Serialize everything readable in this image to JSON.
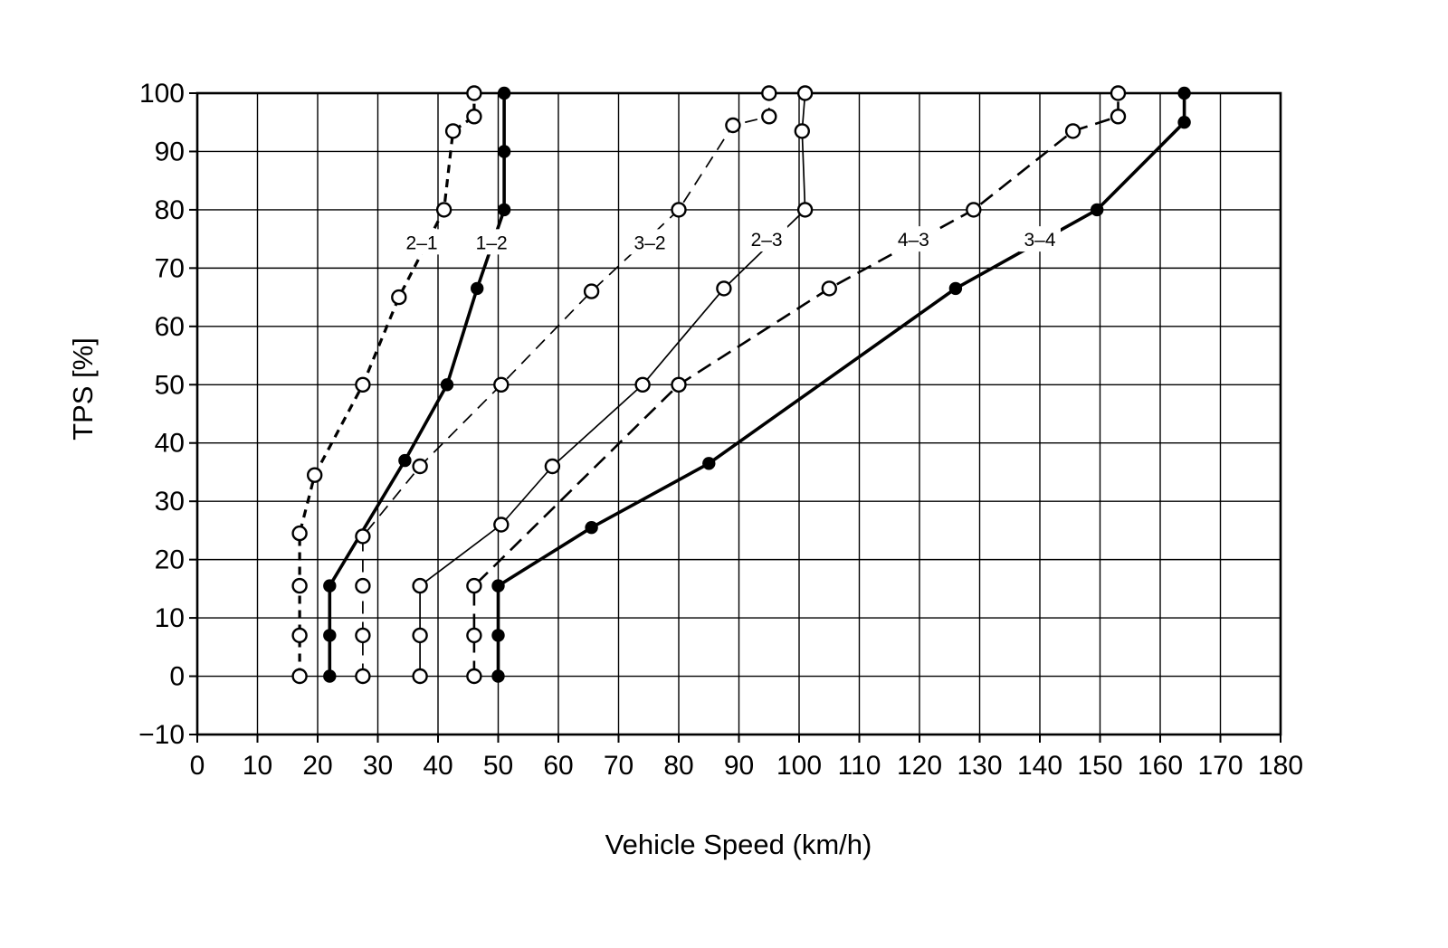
{
  "page": {
    "background": "#ffffff",
    "ink": "#000000"
  },
  "chart_data": {
    "type": "line",
    "title": "",
    "xlabel": "Vehicle Speed (km/h)",
    "ylabel": "TPS [%]",
    "xlim": [
      0,
      180
    ],
    "ylim": [
      -10,
      100
    ],
    "xtick_step": 10,
    "ytick_step": 10,
    "grid": true,
    "legend_position": "none",
    "axis_color": "#000000",
    "series": [
      {
        "name": "2-1",
        "label": "2–1",
        "label_at": [
          37.3,
          74.5
        ],
        "line_style": "dashed",
        "dash": "9 7",
        "line_width": 3.2,
        "marker": "open",
        "points": [
          [
            17,
            0
          ],
          [
            17,
            7
          ],
          [
            17,
            15.5
          ],
          [
            17,
            24.5
          ],
          [
            19.5,
            34.5
          ],
          [
            27.5,
            50
          ],
          [
            33.5,
            65
          ],
          [
            41,
            80
          ],
          [
            42.5,
            93.5
          ],
          [
            46,
            96
          ],
          [
            46,
            100
          ]
        ]
      },
      {
        "name": "1-2",
        "label": "1–2",
        "label_at": [
          48.9,
          74.5
        ],
        "line_style": "solid",
        "dash": "",
        "line_width": 3.6,
        "marker": "filled",
        "points": [
          [
            22,
            0
          ],
          [
            22,
            7
          ],
          [
            22,
            15.5
          ],
          [
            34.5,
            37
          ],
          [
            41.5,
            50
          ],
          [
            46.5,
            66.5
          ],
          [
            51,
            80
          ],
          [
            51,
            90
          ],
          [
            51,
            100
          ]
        ]
      },
      {
        "name": "3-2",
        "label": "3–2",
        "label_at": [
          75.2,
          74.5
        ],
        "line_style": "dashed",
        "dash": "14 9",
        "line_width": 1.7,
        "marker": "open",
        "points": [
          [
            27.5,
            0
          ],
          [
            27.5,
            7
          ],
          [
            27.5,
            15.5
          ],
          [
            27.5,
            24
          ],
          [
            37,
            36
          ],
          [
            50.5,
            50
          ],
          [
            65.5,
            66
          ],
          [
            80,
            80
          ],
          [
            89,
            94.5
          ],
          [
            95,
            96
          ],
          [
            95,
            100
          ]
        ]
      },
      {
        "name": "2-3",
        "label": "2–3",
        "label_at": [
          94.6,
          75
        ],
        "line_style": "solid",
        "dash": "",
        "line_width": 1.7,
        "marker": "open",
        "points": [
          [
            37,
            0
          ],
          [
            37,
            7
          ],
          [
            37,
            15.5
          ],
          [
            50.5,
            26
          ],
          [
            59,
            36
          ],
          [
            74,
            50
          ],
          [
            87.5,
            66.5
          ],
          [
            101,
            80
          ],
          [
            100.5,
            93.5
          ],
          [
            101,
            100
          ]
        ]
      },
      {
        "name": "4-3",
        "label": "4–3",
        "label_at": [
          119,
          75
        ],
        "line_style": "dashed",
        "dash": "17 9",
        "line_width": 2.6,
        "marker": "open",
        "points": [
          [
            46,
            0
          ],
          [
            46,
            7
          ],
          [
            46,
            15.5
          ],
          [
            80,
            50
          ],
          [
            105,
            66.5
          ],
          [
            129,
            80
          ],
          [
            145.5,
            93.5
          ],
          [
            153,
            96
          ],
          [
            153,
            100
          ]
        ]
      },
      {
        "name": "3-4",
        "label": "3–4",
        "label_at": [
          140,
          75
        ],
        "line_style": "solid",
        "dash": "",
        "line_width": 3.6,
        "marker": "filled",
        "points": [
          [
            50,
            0
          ],
          [
            50,
            7
          ],
          [
            50,
            15.5
          ],
          [
            65.5,
            25.5
          ],
          [
            85,
            36.5
          ],
          [
            126,
            66.5
          ],
          [
            149.5,
            80
          ],
          [
            164,
            95
          ],
          [
            164,
            100
          ]
        ]
      }
    ]
  }
}
